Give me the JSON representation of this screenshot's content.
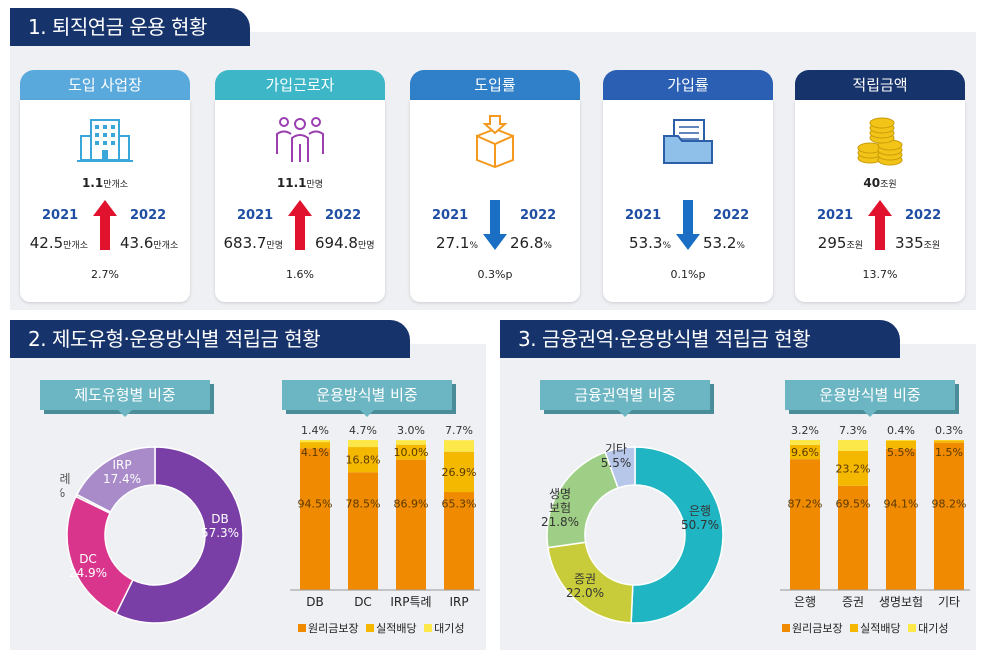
{
  "colors": {
    "navy": "#17336b",
    "accent_up": "#e0122e",
    "accent_down": "#1a6fc4",
    "principal": "#f08a00",
    "performance": "#f5b800",
    "standby": "#fde84a"
  },
  "section1": {
    "title": "1. 퇴직연금 운용 현황",
    "cards": [
      {
        "label": "도입 사업장",
        "icon": "building-icon",
        "total": "1.1",
        "total_unit": "만개소",
        "year_from": "2021",
        "year_to": "2022",
        "val_from": "42.5",
        "unit_from": "만개소",
        "val_to": "43.6",
        "unit_to": "만개소",
        "rate": "2.7",
        "rate_unit": "%",
        "trend": "up"
      },
      {
        "label": "가입근로자",
        "icon": "people-icon",
        "total": "11.1",
        "total_unit": "만명",
        "year_from": "2021",
        "year_to": "2022",
        "val_from": "683.7",
        "unit_from": "만명",
        "val_to": "694.8",
        "unit_to": "만명",
        "rate": "1.6",
        "rate_unit": "%",
        "trend": "up"
      },
      {
        "label": "도입률",
        "icon": "box-icon",
        "total": "",
        "total_unit": "",
        "year_from": "2021",
        "year_to": "2022",
        "val_from": "27.1",
        "unit_from": "%",
        "val_to": "26.8",
        "unit_to": "%",
        "rate": "0.3",
        "rate_unit": "%p",
        "trend": "down"
      },
      {
        "label": "가입률",
        "icon": "folder-icon",
        "total": "",
        "total_unit": "",
        "year_from": "2021",
        "year_to": "2022",
        "val_from": "53.3",
        "unit_from": "%",
        "val_to": "53.2",
        "unit_to": "%",
        "rate": "0.1",
        "rate_unit": "%p",
        "trend": "down"
      },
      {
        "label": "적립금액",
        "icon": "coins-icon",
        "total": "40",
        "total_unit": "조원",
        "year_from": "2021",
        "year_to": "2022",
        "val_from": "295",
        "unit_from": "조원",
        "val_to": "335",
        "unit_to": "조원",
        "rate": "13.7",
        "rate_unit": "%",
        "trend": "up"
      }
    ]
  },
  "section2": {
    "title": "2. 제도유형·운용방식별 적립금 현황",
    "donut_title": "제도유형별 비중",
    "bar_title": "운용방식별 비중"
  },
  "section3": {
    "title": "3. 금융권역·운용방식별 적립금 현황",
    "donut_title": "금융권역별 비중",
    "bar_title": "운용방식별 비중"
  },
  "legend": [
    "원리금보장",
    "실적배당",
    "대기성"
  ],
  "chart_data": [
    {
      "type": "pie",
      "variant": "donut",
      "title": "제도유형별 비중",
      "slices": [
        {
          "label": "DB",
          "value": 57.3,
          "color": "#7a3fa6"
        },
        {
          "label": "DC",
          "value": 24.9,
          "color": "#d9358c"
        },
        {
          "label": "IRP특례",
          "value": 0.4,
          "color": "#b9b9b9"
        },
        {
          "label": "IRP",
          "value": 17.4,
          "color": "#a98bc9"
        }
      ]
    },
    {
      "type": "bar",
      "stacked": true,
      "title": "운용방식별 비중",
      "categories": [
        "DB",
        "DC",
        "IRP특례",
        "IRP"
      ],
      "series": [
        {
          "name": "원리금보장",
          "values": [
            94.5,
            78.5,
            86.9,
            65.3
          ]
        },
        {
          "name": "실적배당",
          "values": [
            4.1,
            16.8,
            10.0,
            26.9
          ]
        },
        {
          "name": "대기성",
          "values": [
            1.4,
            4.7,
            3.0,
            7.7
          ]
        }
      ],
      "labels": [
        [
          "94.5%",
          "4.1%",
          "1.4%"
        ],
        [
          "78.5%",
          "16.8%",
          "4.7%"
        ],
        [
          "86.9%",
          "10.0%",
          "3.0%"
        ],
        [
          "65.3%",
          "26.9%",
          "7.7%"
        ]
      ]
    },
    {
      "type": "pie",
      "variant": "donut",
      "title": "금융권역별 비중",
      "slices": [
        {
          "label": "은행",
          "value": 50.7,
          "color": "#1fb5c2"
        },
        {
          "label": "증권",
          "value": 22.0,
          "color": "#c9cc3a"
        },
        {
          "label": "생명\n보험",
          "value": 21.8,
          "color": "#9fcf86"
        },
        {
          "label": "기타",
          "value": 5.5,
          "color": "#b7c7ea"
        }
      ]
    },
    {
      "type": "bar",
      "stacked": true,
      "title": "운용방식별 비중",
      "categories": [
        "은행",
        "증권",
        "생명보험",
        "기타"
      ],
      "series": [
        {
          "name": "원리금보장",
          "values": [
            87.2,
            69.5,
            94.1,
            98.2
          ]
        },
        {
          "name": "실적배당",
          "values": [
            9.6,
            23.2,
            5.5,
            1.5
          ]
        },
        {
          "name": "대기성",
          "values": [
            3.2,
            7.3,
            0.4,
            0.3
          ]
        }
      ],
      "labels": [
        [
          "87.2%",
          "9.6%",
          "3.2%"
        ],
        [
          "69.5%",
          "23.2%",
          "7.3%"
        ],
        [
          "94.1%",
          "5.5%",
          "0.4%"
        ],
        [
          "98.2%",
          "1.5%",
          "0.3%"
        ]
      ]
    }
  ]
}
